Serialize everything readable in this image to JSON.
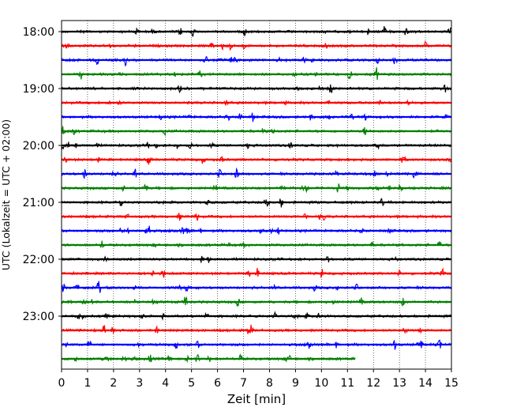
{
  "chart_data": {
    "type": "line",
    "chart_kind": "helicorder",
    "xlabel": "Zeit  [min]",
    "ylabel": "UTC (Lokalzeit = UTC + 02:00)",
    "xlim": [
      0,
      15
    ],
    "x_ticks": [
      0,
      1,
      2,
      3,
      4,
      5,
      6,
      7,
      8,
      9,
      10,
      11,
      12,
      13,
      14,
      15
    ],
    "y_tick_labels": [
      "18:00",
      "19:00",
      "20:00",
      "21:00",
      "22:00",
      "23:00"
    ],
    "trace_interval_min": 15,
    "trace_start": "18:00",
    "grid": "vertical dotted at each minute",
    "colors": [
      "#000000",
      "#ff0000",
      "#0000ff",
      "#008000"
    ],
    "traces": [
      {
        "start": "18:00",
        "color": "#000000",
        "end_min": 15
      },
      {
        "start": "18:15",
        "color": "#ff0000",
        "end_min": 15
      },
      {
        "start": "18:30",
        "color": "#0000ff",
        "end_min": 15
      },
      {
        "start": "18:45",
        "color": "#008000",
        "end_min": 15
      },
      {
        "start": "19:00",
        "color": "#000000",
        "end_min": 15
      },
      {
        "start": "19:15",
        "color": "#ff0000",
        "end_min": 15
      },
      {
        "start": "19:30",
        "color": "#0000ff",
        "end_min": 15
      },
      {
        "start": "19:45",
        "color": "#008000",
        "end_min": 15
      },
      {
        "start": "20:00",
        "color": "#000000",
        "end_min": 15
      },
      {
        "start": "20:15",
        "color": "#ff0000",
        "end_min": 15
      },
      {
        "start": "20:30",
        "color": "#0000ff",
        "end_min": 15
      },
      {
        "start": "20:45",
        "color": "#008000",
        "end_min": 15
      },
      {
        "start": "21:00",
        "color": "#000000",
        "end_min": 15
      },
      {
        "start": "21:15",
        "color": "#ff0000",
        "end_min": 15
      },
      {
        "start": "21:30",
        "color": "#0000ff",
        "end_min": 15
      },
      {
        "start": "21:45",
        "color": "#008000",
        "end_min": 15
      },
      {
        "start": "22:00",
        "color": "#000000",
        "end_min": 15
      },
      {
        "start": "22:15",
        "color": "#ff0000",
        "end_min": 15
      },
      {
        "start": "22:30",
        "color": "#0000ff",
        "end_min": 15
      },
      {
        "start": "22:45",
        "color": "#008000",
        "end_min": 15
      },
      {
        "start": "23:00",
        "color": "#000000",
        "end_min": 15
      },
      {
        "start": "23:15",
        "color": "#ff0000",
        "end_min": 15
      },
      {
        "start": "23:30",
        "color": "#0000ff",
        "end_min": 15
      },
      {
        "start": "23:45",
        "color": "#008000",
        "end_min": 11.3
      }
    ]
  }
}
